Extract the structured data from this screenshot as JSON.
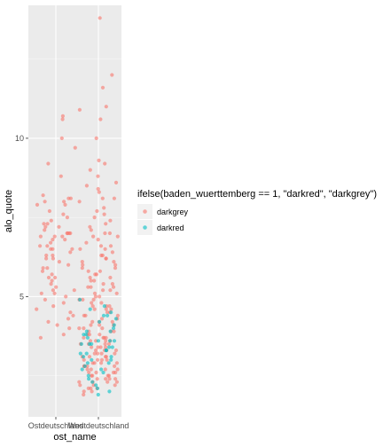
{
  "chart_data": {
    "type": "scatter",
    "title": "",
    "xlabel": "ost_name",
    "ylabel": "alo_quote",
    "categories": [
      "Ostdeutschland",
      "Westdeutschland"
    ],
    "ylim": [
      1.2,
      14.2
    ],
    "yticks": [
      5,
      10
    ],
    "grid": true,
    "legend_position": "right",
    "legend_title": "ifelse(baden_wuerttemberg == 1, \"darkred\", \"darkgrey\")",
    "series": [
      {
        "name": "darkgrey",
        "color": "#F8766D",
        "points": [
          [
            1,
            10.0
          ],
          [
            1,
            9.2
          ],
          [
            1,
            8.8
          ],
          [
            1,
            9.7
          ],
          [
            1,
            10.7
          ],
          [
            1,
            10.6
          ],
          [
            1,
            8.2
          ],
          [
            1,
            8.1
          ],
          [
            1,
            8.0
          ],
          [
            1,
            8.1
          ],
          [
            1,
            7.9
          ],
          [
            1,
            7.7
          ],
          [
            1,
            7.5
          ],
          [
            1,
            7.3
          ],
          [
            1,
            7.2
          ],
          [
            1,
            7.2
          ],
          [
            1,
            7.1
          ],
          [
            1,
            7.0
          ],
          [
            1,
            7.0
          ],
          [
            1,
            7.0
          ],
          [
            1,
            6.9
          ],
          [
            1,
            6.9
          ],
          [
            1,
            6.8
          ],
          [
            1,
            6.7
          ],
          [
            1,
            6.6
          ],
          [
            1,
            6.5
          ],
          [
            1,
            6.5
          ],
          [
            1,
            6.4
          ],
          [
            1,
            6.3
          ],
          [
            1,
            6.2
          ],
          [
            1,
            6.0
          ],
          [
            1,
            5.9
          ],
          [
            1,
            5.8
          ],
          [
            1,
            5.6
          ],
          [
            1,
            5.4
          ],
          [
            1,
            5.3
          ],
          [
            1,
            5.2
          ],
          [
            1,
            5.1
          ],
          [
            1,
            5.0
          ],
          [
            1,
            4.9
          ],
          [
            1,
            4.7
          ],
          [
            1,
            4.5
          ],
          [
            1,
            4.3
          ],
          [
            1,
            4.2
          ],
          [
            1,
            4.1
          ],
          [
            1,
            4.0
          ],
          [
            1,
            3.8
          ],
          [
            1,
            3.7
          ],
          [
            1,
            6.1
          ],
          [
            1,
            6.6
          ],
          [
            1,
            7.6
          ],
          [
            1,
            5.5
          ],
          [
            1,
            4.8
          ],
          [
            1,
            6.3
          ],
          [
            1,
            7.4
          ],
          [
            1,
            5.7
          ],
          [
            1,
            6.8
          ],
          [
            1,
            4.4
          ],
          [
            1,
            5.2
          ],
          [
            1,
            7.9
          ],
          [
            1,
            6.2
          ],
          [
            1,
            5.1
          ],
          [
            1,
            6.9
          ],
          [
            1,
            4.6
          ],
          [
            1,
            7.3
          ],
          [
            1,
            5.9
          ],
          [
            1,
            6.5
          ],
          [
            1,
            8.0
          ],
          [
            1,
            7.0
          ],
          [
            1,
            5.6
          ],
          [
            2,
            13.8
          ],
          [
            2,
            12.0
          ],
          [
            2,
            11.6
          ],
          [
            2,
            11.0
          ],
          [
            2,
            10.9
          ],
          [
            2,
            10.6
          ],
          [
            2,
            10.0
          ],
          [
            2,
            9.3
          ],
          [
            2,
            9.2
          ],
          [
            2,
            9.0
          ],
          [
            2,
            8.8
          ],
          [
            2,
            8.6
          ],
          [
            2,
            8.5
          ],
          [
            2,
            8.3
          ],
          [
            2,
            8.1
          ],
          [
            2,
            8.1
          ],
          [
            2,
            8.0
          ],
          [
            2,
            7.8
          ],
          [
            2,
            7.6
          ],
          [
            2,
            7.5
          ],
          [
            2,
            7.4
          ],
          [
            2,
            7.3
          ],
          [
            2,
            7.2
          ],
          [
            2,
            7.0
          ],
          [
            2,
            6.9
          ],
          [
            2,
            6.8
          ],
          [
            2,
            6.7
          ],
          [
            2,
            6.6
          ],
          [
            2,
            6.5
          ],
          [
            2,
            6.4
          ],
          [
            2,
            6.3
          ],
          [
            2,
            6.2
          ],
          [
            2,
            6.1
          ],
          [
            2,
            6.0
          ],
          [
            2,
            5.9
          ],
          [
            2,
            5.8
          ],
          [
            2,
            5.7
          ],
          [
            2,
            5.6
          ],
          [
            2,
            5.5
          ],
          [
            2,
            5.4
          ],
          [
            2,
            5.3
          ],
          [
            2,
            5.2
          ],
          [
            2,
            5.1
          ],
          [
            2,
            5.0
          ],
          [
            2,
            4.9
          ],
          [
            2,
            4.8
          ],
          [
            2,
            4.7
          ],
          [
            2,
            4.6
          ],
          [
            2,
            4.5
          ],
          [
            2,
            4.4
          ],
          [
            2,
            4.3
          ],
          [
            2,
            4.2
          ],
          [
            2,
            4.1
          ],
          [
            2,
            4.0
          ],
          [
            2,
            3.9
          ],
          [
            2,
            3.8
          ],
          [
            2,
            3.7
          ],
          [
            2,
            3.6
          ],
          [
            2,
            3.5
          ],
          [
            2,
            3.4
          ],
          [
            2,
            3.3
          ],
          [
            2,
            3.2
          ],
          [
            2,
            3.1
          ],
          [
            2,
            3.0
          ],
          [
            2,
            2.9
          ],
          [
            2,
            2.8
          ],
          [
            2,
            2.7
          ],
          [
            2,
            2.6
          ],
          [
            2,
            2.5
          ],
          [
            2,
            2.4
          ],
          [
            2,
            2.3
          ],
          [
            2,
            2.2
          ],
          [
            2,
            2.1
          ],
          [
            2,
            2.0
          ],
          [
            2,
            1.9
          ],
          [
            2,
            5.8
          ],
          [
            2,
            5.1
          ],
          [
            2,
            4.6
          ],
          [
            2,
            4.2
          ],
          [
            2,
            3.9
          ],
          [
            2,
            3.6
          ],
          [
            2,
            3.4
          ],
          [
            2,
            3.2
          ],
          [
            2,
            3.0
          ],
          [
            2,
            2.8
          ],
          [
            2,
            2.6
          ],
          [
            2,
            2.5
          ],
          [
            2,
            2.3
          ],
          [
            2,
            6.3
          ],
          [
            2,
            5.5
          ],
          [
            2,
            4.9
          ],
          [
            2,
            4.4
          ],
          [
            2,
            4.0
          ],
          [
            2,
            3.7
          ],
          [
            2,
            3.5
          ],
          [
            2,
            3.3
          ],
          [
            2,
            3.1
          ],
          [
            2,
            2.9
          ],
          [
            2,
            2.7
          ],
          [
            2,
            2.4
          ],
          [
            2,
            2.2
          ],
          [
            2,
            7.1
          ],
          [
            2,
            6.0
          ],
          [
            2,
            5.3
          ],
          [
            2,
            4.7
          ],
          [
            2,
            4.3
          ],
          [
            2,
            3.8
          ],
          [
            2,
            3.5
          ],
          [
            2,
            3.2
          ],
          [
            2,
            2.9
          ],
          [
            2,
            2.6
          ],
          [
            2,
            2.3
          ],
          [
            2,
            2.1
          ],
          [
            2,
            6.6
          ],
          [
            2,
            5.6
          ],
          [
            2,
            5.0
          ],
          [
            2,
            4.5
          ],
          [
            2,
            4.1
          ],
          [
            2,
            3.7
          ],
          [
            2,
            3.4
          ],
          [
            2,
            3.1
          ],
          [
            2,
            2.8
          ],
          [
            2,
            2.5
          ],
          [
            2,
            2.2
          ],
          [
            2,
            2.0
          ],
          [
            2,
            8.4
          ],
          [
            2,
            7.7
          ],
          [
            2,
            6.9
          ],
          [
            2,
            6.2
          ],
          [
            2,
            5.4
          ],
          [
            2,
            4.8
          ],
          [
            2,
            4.2
          ],
          [
            2,
            3.6
          ],
          [
            2,
            3.3
          ],
          [
            2,
            3.0
          ],
          [
            2,
            2.7
          ],
          [
            2,
            2.4
          ],
          [
            2,
            5.9
          ],
          [
            2,
            5.2
          ],
          [
            2,
            4.6
          ],
          [
            2,
            4.1
          ],
          [
            2,
            3.8
          ],
          [
            2,
            3.5
          ],
          [
            2,
            3.2
          ],
          [
            2,
            2.9
          ],
          [
            2,
            2.6
          ],
          [
            2,
            2.3
          ],
          [
            2,
            6.5
          ],
          [
            2,
            5.7
          ],
          [
            2,
            4.9
          ],
          [
            2,
            4.4
          ],
          [
            2,
            3.9
          ],
          [
            2,
            3.6
          ],
          [
            2,
            3.3
          ],
          [
            2,
            3.0
          ],
          [
            2,
            2.7
          ],
          [
            2,
            2.4
          ],
          [
            2,
            2.1
          ],
          [
            2,
            7.0
          ],
          [
            2,
            6.1
          ],
          [
            2,
            5.3
          ],
          [
            2,
            4.7
          ],
          [
            2,
            4.0
          ],
          [
            2,
            3.7
          ],
          [
            2,
            3.4
          ],
          [
            2,
            3.1
          ],
          [
            2,
            2.8
          ],
          [
            2,
            2.5
          ]
        ]
      },
      {
        "name": "darkred",
        "color": "#00BFC4",
        "points": [
          [
            2,
            4.9
          ],
          [
            2,
            4.7
          ],
          [
            2,
            4.6
          ],
          [
            2,
            4.5
          ],
          [
            2,
            4.4
          ],
          [
            2,
            4.3
          ],
          [
            2,
            4.2
          ],
          [
            2,
            4.0
          ],
          [
            2,
            3.9
          ],
          [
            2,
            3.8
          ],
          [
            2,
            3.7
          ],
          [
            2,
            3.6
          ],
          [
            2,
            3.6
          ],
          [
            2,
            3.5
          ],
          [
            2,
            3.5
          ],
          [
            2,
            3.4
          ],
          [
            2,
            3.4
          ],
          [
            2,
            3.3
          ],
          [
            2,
            3.3
          ],
          [
            2,
            3.2
          ],
          [
            2,
            3.1
          ],
          [
            2,
            3.0
          ],
          [
            2,
            2.9
          ],
          [
            2,
            2.9
          ],
          [
            2,
            2.8
          ],
          [
            2,
            2.7
          ],
          [
            2,
            2.5
          ],
          [
            2,
            2.3
          ],
          [
            2,
            2.1
          ],
          [
            2,
            1.9
          ],
          [
            2,
            3.5
          ],
          [
            2,
            3.0
          ],
          [
            2,
            2.6
          ],
          [
            2,
            4.1
          ],
          [
            2,
            3.8
          ],
          [
            2,
            3.2
          ],
          [
            2,
            2.4
          ],
          [
            2,
            2.0
          ],
          [
            2,
            3.6
          ],
          [
            2,
            4.4
          ],
          [
            2,
            2.7
          ],
          [
            2,
            3.1
          ],
          [
            2,
            3.9
          ],
          [
            2,
            2.2
          ]
        ]
      }
    ]
  }
}
